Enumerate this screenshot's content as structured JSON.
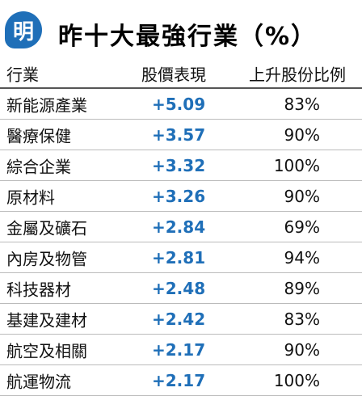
{
  "header": {
    "logo": "明",
    "title": "昨十大最強行業（%）"
  },
  "table": {
    "columns": [
      "行業",
      "股價表現",
      "上升股份比例"
    ],
    "rows": [
      [
        "新能源產業",
        "+5.09",
        "83%"
      ],
      [
        "醫療保健",
        "+3.57",
        "90%"
      ],
      [
        "綜合企業",
        "+3.32",
        "100%"
      ],
      [
        "原材料",
        "+3.26",
        "90%"
      ],
      [
        "金屬及礦石",
        "+2.84",
        "69%"
      ],
      [
        "內房及物管",
        "+2.81",
        "94%"
      ],
      [
        "科技器材",
        "+2.48",
        "89%"
      ],
      [
        "基建及建材",
        "+2.42",
        "83%"
      ],
      [
        "航空及相關",
        "+2.17",
        "90%"
      ],
      [
        "航運物流",
        "+2.17",
        "100%"
      ]
    ]
  }
}
